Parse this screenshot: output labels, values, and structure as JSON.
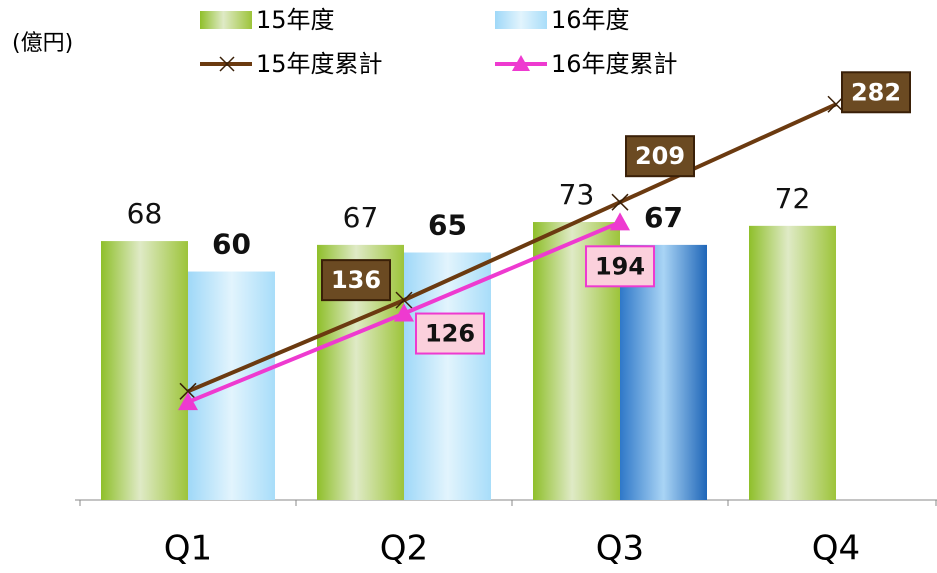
{
  "chart_data": {
    "type": "bar",
    "unit_label": "(億円)",
    "categories": [
      "Q1",
      "Q2",
      "Q3",
      "Q4"
    ],
    "ylim": [
      0,
      130
    ],
    "y2lim": [
      -13,
      356
    ],
    "series": [
      {
        "name": "15年度",
        "type": "bar",
        "color": "#9dc43a",
        "values": [
          68,
          67,
          73,
          72
        ]
      },
      {
        "name": "16年度",
        "type": "bar",
        "color": "#aee0fa",
        "values": [
          60,
          65,
          67,
          null
        ]
      },
      {
        "name": "15年度累計",
        "type": "line",
        "axis": "y2",
        "color": "#6b3a10",
        "values": [
          68,
          136,
          209,
          282
        ]
      },
      {
        "name": "16年度累計",
        "type": "line",
        "axis": "y2",
        "color": "#ee3ad0",
        "values": [
          60,
          126,
          194,
          null
        ]
      }
    ]
  }
}
